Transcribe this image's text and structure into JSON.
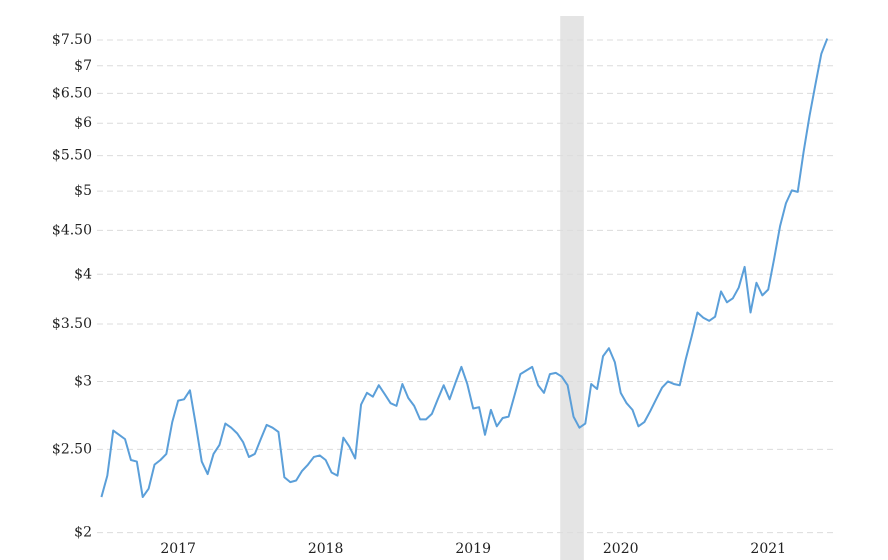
{
  "chart_data": {
    "type": "line",
    "x": [
      2016.98,
      2017.02,
      2017.06,
      2017.1,
      2017.14,
      2017.18,
      2017.22,
      2017.26,
      2017.3,
      2017.34,
      2017.38,
      2017.42,
      2017.46,
      2017.5,
      2017.54,
      2017.58,
      2017.62,
      2017.66,
      2017.7,
      2017.74,
      2017.78,
      2017.82,
      2017.86,
      2017.9,
      2017.94,
      2017.98,
      2018.02,
      2018.06,
      2018.1,
      2018.14,
      2018.18,
      2018.22,
      2018.26,
      2018.3,
      2018.34,
      2018.38,
      2018.42,
      2018.46,
      2018.5,
      2018.54,
      2018.58,
      2018.62,
      2018.66,
      2018.7,
      2018.74,
      2018.78,
      2018.82,
      2018.86,
      2018.9,
      2018.94,
      2018.98,
      2019.02,
      2019.06,
      2019.1,
      2019.14,
      2019.18,
      2019.22,
      2019.26,
      2019.3,
      2019.34,
      2019.38,
      2019.42,
      2019.46,
      2019.5,
      2019.54,
      2019.58,
      2019.62,
      2019.66,
      2019.7,
      2019.74,
      2019.78,
      2019.82,
      2019.86,
      2019.9,
      2019.94,
      2019.98,
      2020.02,
      2020.06,
      2020.1,
      2020.14,
      2020.18,
      2020.22,
      2020.26,
      2020.3,
      2020.34,
      2020.38,
      2020.42,
      2020.46,
      2020.5,
      2020.54,
      2020.58,
      2020.62,
      2020.66,
      2020.7,
      2020.74,
      2020.78,
      2020.82,
      2020.86,
      2020.9,
      2020.94,
      2020.98,
      2021.02,
      2021.06,
      2021.1,
      2021.14,
      2021.18,
      2021.22,
      2021.26,
      2021.3,
      2021.34,
      2021.38,
      2021.42,
      2021.46,
      2021.5,
      2021.54,
      2021.58,
      2021.62,
      2021.66,
      2021.7,
      2021.74,
      2021.78,
      2021.82,
      2021.86,
      2021.9
    ],
    "series": [
      {
        "color": "#5b9fd9",
        "values": [
          2.2,
          2.33,
          2.63,
          2.6,
          2.57,
          2.43,
          2.42,
          2.2,
          2.25,
          2.4,
          2.43,
          2.47,
          2.69,
          2.85,
          2.86,
          2.93,
          2.67,
          2.42,
          2.34,
          2.47,
          2.53,
          2.68,
          2.65,
          2.61,
          2.55,
          2.45,
          2.47,
          2.57,
          2.67,
          2.65,
          2.62,
          2.32,
          2.29,
          2.3,
          2.36,
          2.4,
          2.45,
          2.46,
          2.43,
          2.35,
          2.33,
          2.58,
          2.52,
          2.44,
          2.82,
          2.91,
          2.88,
          2.97,
          2.9,
          2.83,
          2.81,
          2.98,
          2.87,
          2.81,
          2.71,
          2.71,
          2.75,
          2.86,
          2.97,
          2.86,
          2.99,
          3.12,
          2.98,
          2.79,
          2.8,
          2.6,
          2.78,
          2.66,
          2.72,
          2.73,
          2.89,
          3.06,
          3.09,
          3.12,
          2.97,
          2.91,
          3.06,
          3.07,
          3.04,
          2.97,
          2.73,
          2.65,
          2.68,
          2.98,
          2.94,
          3.21,
          3.28,
          3.16,
          2.91,
          2.83,
          2.78,
          2.66,
          2.69,
          2.77,
          2.86,
          2.95,
          3.0,
          2.98,
          2.97,
          3.18,
          3.38,
          3.61,
          3.56,
          3.53,
          3.57,
          3.82,
          3.71,
          3.75,
          3.86,
          4.08,
          3.61,
          3.91,
          3.78,
          3.84,
          4.17,
          4.55,
          4.84,
          5.01,
          4.99,
          5.56,
          6.12,
          6.66,
          7.23,
          7.53
        ]
      }
    ],
    "recession": [
      2020.09,
      2020.25
    ],
    "log_y": true,
    "grid": true,
    "xlim": [
      2016.95,
      2022.0
    ],
    "xticks": [
      {
        "value": 2017.5,
        "label": "2017"
      },
      {
        "value": 2018.5,
        "label": "2018"
      },
      {
        "value": 2019.5,
        "label": "2019"
      },
      {
        "value": 2020.5,
        "label": "2020"
      },
      {
        "value": 2021.5,
        "label": "2021"
      }
    ],
    "ylim": [
      1.95,
      8.0
    ],
    "yticks": [
      {
        "value": 2,
        "label": "$2"
      },
      {
        "value": 2.5,
        "label": "$2.50"
      },
      {
        "value": 3,
        "label": "$3"
      },
      {
        "value": 3.5,
        "label": "$3.50"
      },
      {
        "value": 4,
        "label": "$4"
      },
      {
        "value": 4.5,
        "label": "$4.50"
      },
      {
        "value": 5,
        "label": "$5"
      },
      {
        "value": 5.5,
        "label": "$5.50"
      },
      {
        "value": 6,
        "label": "$6"
      },
      {
        "value": 6.5,
        "label": "$6.50"
      },
      {
        "value": 7,
        "label": "$7"
      },
      {
        "value": 7.5,
        "label": "$7.50"
      }
    ]
  }
}
